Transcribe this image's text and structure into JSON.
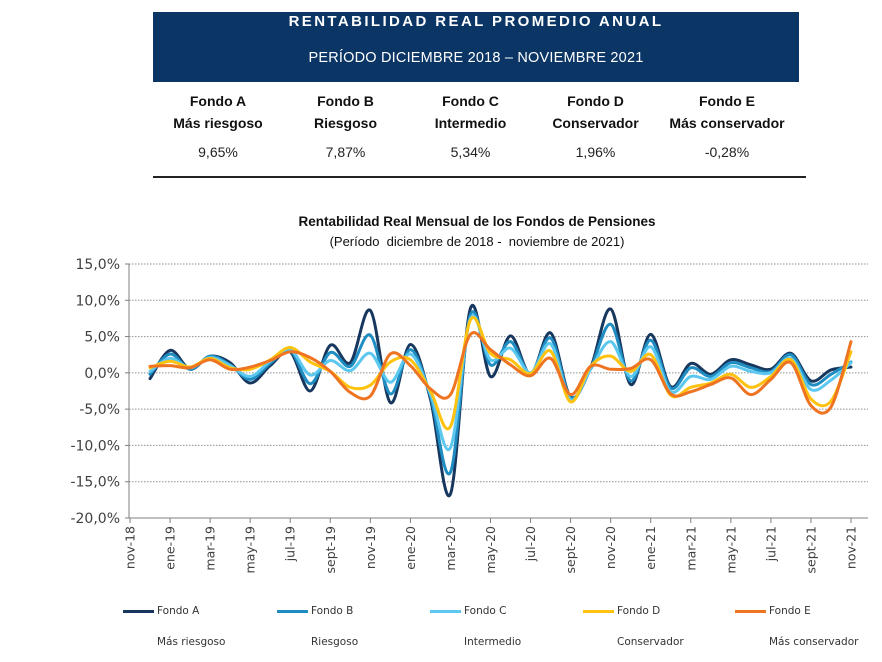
{
  "header": {
    "title": "RENTABILIDAD REAL PROMEDIO ANUAL",
    "period": "PERÍODO DICIEMBRE 2018 – NOVIEMBRE 2021",
    "background_color": "#0a3565"
  },
  "summary": [
    {
      "fund": "Fondo A",
      "profile": "Más riesgoso",
      "value": "9,65%"
    },
    {
      "fund": "Fondo B",
      "profile": "Riesgoso",
      "value": "7,87%"
    },
    {
      "fund": "Fondo C",
      "profile": "Intermedio",
      "value": "5,34%"
    },
    {
      "fund": "Fondo D",
      "profile": "Conservador",
      "value": "1,96%"
    },
    {
      "fund": "Fondo E",
      "profile": "Más conservador",
      "value": "-0,28%"
    }
  ],
  "chart_data": {
    "type": "line",
    "title": "Rentabilidad Real Mensual de los Fondos de Pensiones",
    "subtitle": "(Período  diciembre de 2018 -  noviembre de 2021)",
    "xlabel": "",
    "ylabel": "",
    "ylim": [
      -20,
      15
    ],
    "grid": true,
    "legend_position": "bottom",
    "yticks": [
      15,
      10,
      5,
      0,
      -5,
      -10,
      -15,
      -20
    ],
    "ytick_labels": [
      "15,0%",
      "10,0%",
      "5,0%",
      "0,0%",
      "-5,0%",
      "-10,0%",
      "-15,0%",
      "-20,0%"
    ],
    "categories": [
      "nov-18",
      "dic-18",
      "ene-19",
      "feb-19",
      "mar-19",
      "abr-19",
      "may-19",
      "jun-19",
      "jul-19",
      "ago-19",
      "sept-19",
      "oct-19",
      "nov-19",
      "dic-19",
      "ene-20",
      "feb-20",
      "mar-20",
      "abr-20",
      "may-20",
      "jun-20",
      "jul-20",
      "ago-20",
      "sept-20",
      "oct-20",
      "nov-20",
      "dic-20",
      "ene-21",
      "feb-21",
      "mar-21",
      "abr-21",
      "may-21",
      "jun-21",
      "jul-21",
      "ago-21",
      "sept-21",
      "oct-21",
      "nov-21"
    ],
    "xtick_labels": [
      "nov-18",
      "ene-19",
      "mar-19",
      "may-19",
      "jul-19",
      "sept-19",
      "nov-19",
      "ene-20",
      "mar-20",
      "may-20",
      "jul-20",
      "sept-20",
      "nov-20",
      "ene-21",
      "mar-21",
      "may-21",
      "jul-21",
      "sept-21",
      "nov-21"
    ],
    "series": [
      {
        "name": "Fondo A",
        "description": "Más riesgoso",
        "color": "#17375e",
        "values": [
          null,
          -0.8,
          3.1,
          0.5,
          2.3,
          1.4,
          -1.4,
          1.0,
          2.9,
          -2.5,
          3.8,
          1.4,
          8.6,
          -4.1,
          3.9,
          -3.6,
          -16.7,
          8.9,
          -0.5,
          5.1,
          -0.2,
          5.5,
          -3.3,
          0.7,
          8.8,
          -1.6,
          5.3,
          -1.9,
          1.3,
          -0.2,
          1.8,
          1.1,
          0.5,
          2.7,
          -1.1,
          0.4,
          0.8
        ]
      },
      {
        "name": "Fondo B",
        "description": "Riesgoso",
        "color": "#1f8dc2",
        "values": [
          null,
          -0.2,
          2.6,
          0.5,
          2.3,
          1.1,
          -0.9,
          1.3,
          3.1,
          -1.5,
          2.8,
          0.9,
          5.2,
          -2.9,
          3.2,
          -3.2,
          -13.7,
          8.0,
          1.1,
          4.3,
          -0.1,
          4.8,
          -3.4,
          0.6,
          6.7,
          -1.1,
          4.5,
          -2.1,
          0.7,
          -0.5,
          1.4,
          0.7,
          0.2,
          2.5,
          -1.6,
          -0.2,
          1.5
        ]
      },
      {
        "name": "Fondo C",
        "description": "Intermedio",
        "color": "#5cc8f0",
        "values": [
          null,
          0.2,
          2.0,
          0.7,
          2.1,
          1.0,
          -0.5,
          1.6,
          3.2,
          -0.3,
          1.7,
          0.3,
          2.7,
          -1.3,
          2.6,
          -2.9,
          -10.3,
          7.5,
          1.8,
          3.4,
          0.0,
          4.0,
          -3.7,
          0.5,
          4.3,
          -0.5,
          3.6,
          -2.6,
          -0.5,
          -0.9,
          0.9,
          0.2,
          0.0,
          2.0,
          -2.3,
          -1.0,
          1.4
        ]
      },
      {
        "name": "Fondo D",
        "description": "Conservador",
        "color": "#ffc20e",
        "values": [
          null,
          0.7,
          1.6,
          0.8,
          2.0,
          0.7,
          0.5,
          1.8,
          3.5,
          1.5,
          0.2,
          -2.0,
          -1.7,
          1.5,
          1.8,
          -2.5,
          -7.4,
          7.3,
          2.7,
          1.8,
          -0.1,
          3.0,
          -4.0,
          0.9,
          2.3,
          0.2,
          2.5,
          -3.1,
          -2.0,
          -1.4,
          -0.2,
          -2.0,
          -0.5,
          1.8,
          -3.6,
          -3.9,
          2.9
        ]
      },
      {
        "name": "Fondo E",
        "description": "Más conservador",
        "color": "#ef7422",
        "values": [
          null,
          0.9,
          1.0,
          0.7,
          1.8,
          0.5,
          0.8,
          1.7,
          2.9,
          2.1,
          0.2,
          -2.7,
          -3.2,
          2.6,
          1.0,
          -2.2,
          -3.0,
          5.3,
          3.2,
          1.1,
          -0.4,
          2.0,
          -3.0,
          0.9,
          0.5,
          0.6,
          1.8,
          -2.9,
          -2.6,
          -1.6,
          -0.7,
          -3.0,
          -0.9,
          1.4,
          -4.5,
          -4.7,
          4.3
        ]
      }
    ]
  }
}
